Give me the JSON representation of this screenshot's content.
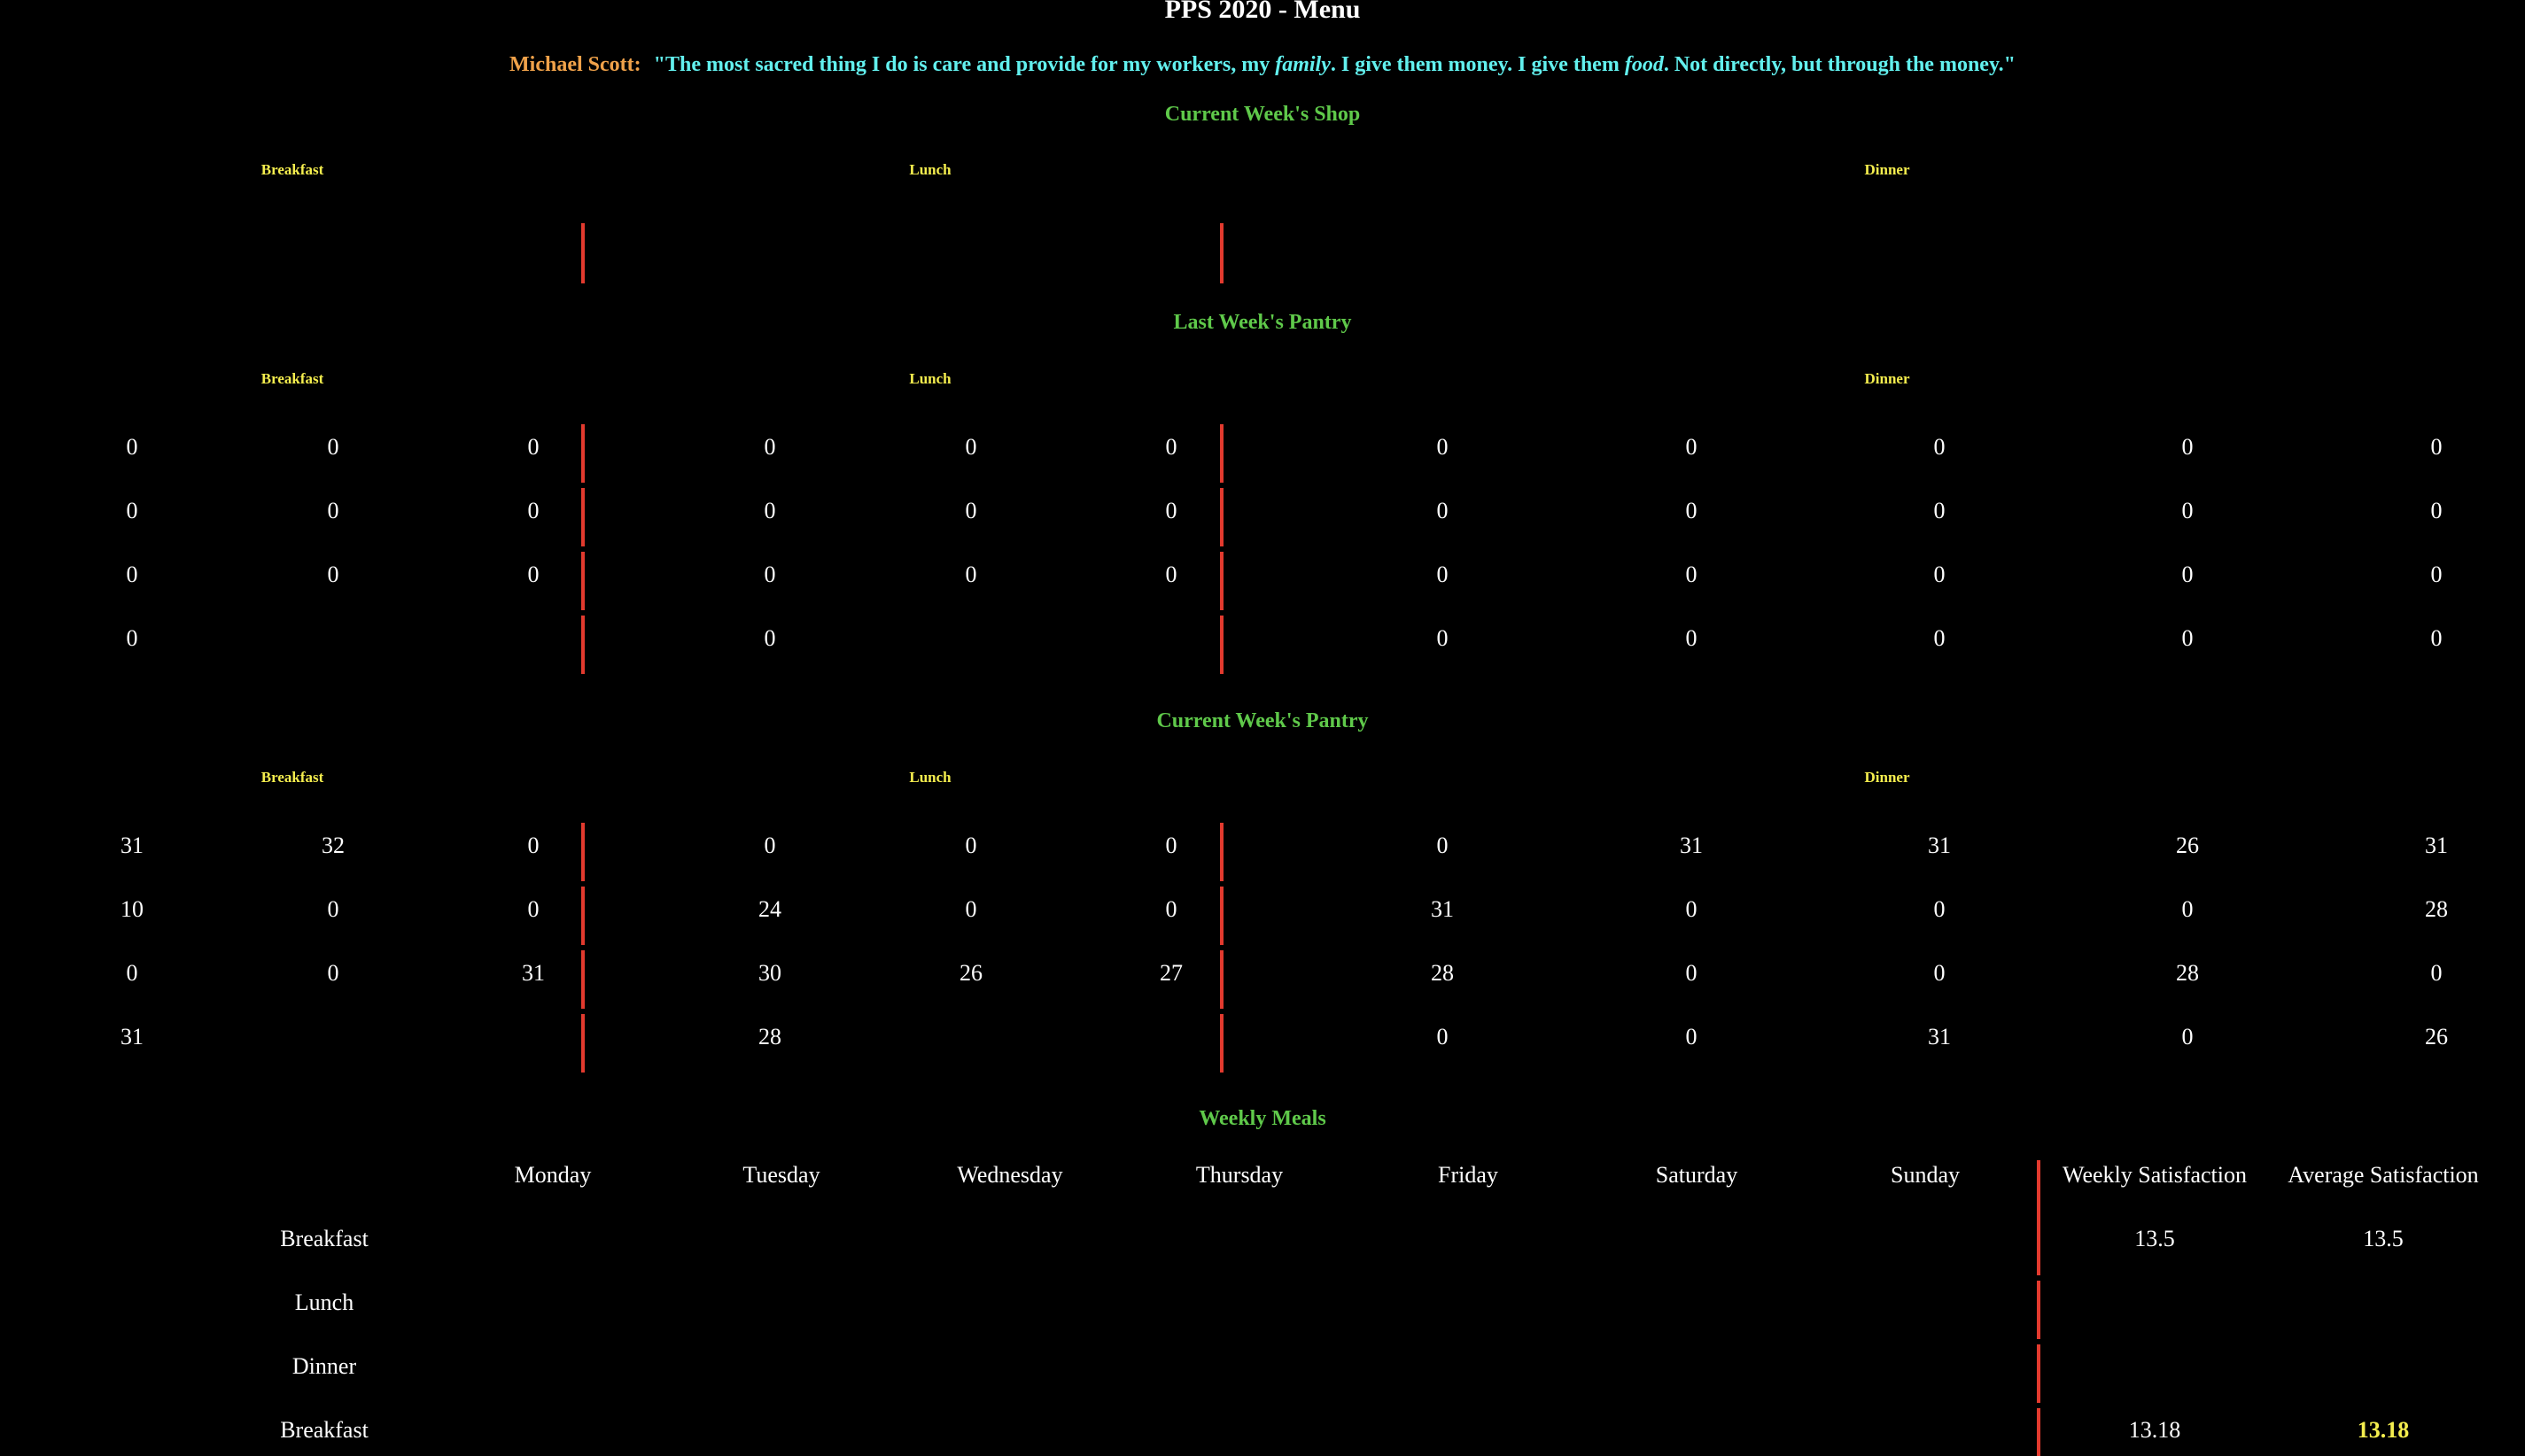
{
  "header": {
    "title": "PPS 2020 - Menu",
    "quote_author": "Michael Scott:",
    "quote_part1": "\"The most sacred thing I do is care and provide for my workers, my ",
    "quote_em1": "family",
    "quote_part2": ". I give them money. I give them ",
    "quote_em2": "food",
    "quote_part3": ". Not directly, but through the money.\""
  },
  "current_shop": {
    "title": "Current Week's Shop",
    "labels": {
      "breakfast": "Breakfast",
      "lunch": "Lunch",
      "dinner": "Dinner"
    }
  },
  "last_pantry": {
    "title": "Last Week's Pantry",
    "labels": {
      "breakfast": "Breakfast",
      "lunch": "Lunch",
      "dinner": "Dinner"
    },
    "breakfast": [
      [
        "0",
        "0",
        "0"
      ],
      [
        "0",
        "0",
        "0"
      ],
      [
        "0",
        "0",
        "0"
      ],
      [
        "0",
        "",
        ""
      ]
    ],
    "lunch": [
      [
        "0",
        "0",
        "0"
      ],
      [
        "0",
        "0",
        "0"
      ],
      [
        "0",
        "0",
        "0"
      ],
      [
        "0",
        "",
        ""
      ]
    ],
    "dinner": [
      [
        "0",
        "0",
        "0",
        "0",
        "0"
      ],
      [
        "0",
        "0",
        "0",
        "0",
        "0"
      ],
      [
        "0",
        "0",
        "0",
        "0",
        "0"
      ],
      [
        "0",
        "0",
        "0",
        "0",
        "0"
      ]
    ]
  },
  "current_pantry": {
    "title": "Current Week's Pantry",
    "labels": {
      "breakfast": "Breakfast",
      "lunch": "Lunch",
      "dinner": "Dinner"
    },
    "breakfast": [
      [
        "31",
        "32",
        "0"
      ],
      [
        "10",
        "0",
        "0"
      ],
      [
        "0",
        "0",
        "31"
      ],
      [
        "31",
        "",
        ""
      ]
    ],
    "lunch": [
      [
        "0",
        "0",
        "0"
      ],
      [
        "24",
        "0",
        "0"
      ],
      [
        "30",
        "26",
        "27"
      ],
      [
        "28",
        "",
        ""
      ]
    ],
    "dinner": [
      [
        "0",
        "31",
        "31",
        "26",
        "31"
      ],
      [
        "31",
        "0",
        "0",
        "0",
        "28"
      ],
      [
        "28",
        "0",
        "0",
        "28",
        "0"
      ],
      [
        "0",
        "0",
        "31",
        "0",
        "26"
      ]
    ]
  },
  "weekly_meals": {
    "title": "Weekly Meals",
    "days": [
      "Monday",
      "Tuesday",
      "Wednesday",
      "Thursday",
      "Friday",
      "Saturday",
      "Sunday"
    ],
    "weekly_sat_label": "Weekly Satisfaction",
    "avg_sat_label": "Average Satisfaction",
    "rows": [
      {
        "label": "Breakfast",
        "weekly": "13.5",
        "average": "13.5"
      },
      {
        "label": "Lunch",
        "weekly": "",
        "average": ""
      },
      {
        "label": "Dinner",
        "weekly": "",
        "average": ""
      },
      {
        "label": "Breakfast",
        "weekly": "13.18",
        "average": "13.18"
      }
    ]
  },
  "colors": {
    "section_title": "#5fc94a",
    "meal_label": "#f5ee4e",
    "quote_author": "#f0a24a",
    "quote_text": "#62f0ee",
    "divider": "#e23a2e"
  }
}
